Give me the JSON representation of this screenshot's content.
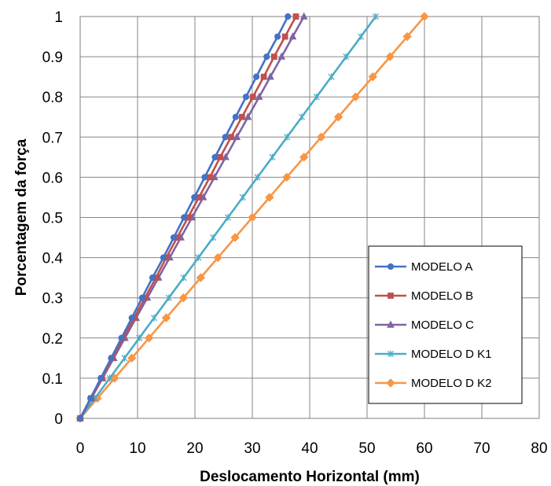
{
  "chart_data": {
    "type": "line",
    "title": "",
    "xlabel": "Deslocamento Horizontal (mm)",
    "ylabel": "Porcentagem da força",
    "xlim": [
      0,
      80
    ],
    "ylim": [
      0,
      1
    ],
    "xticks": [
      "0",
      "10",
      "20",
      "30",
      "40",
      "50",
      "60",
      "70",
      "80"
    ],
    "yticks": [
      "0",
      "0.1",
      "0.2",
      "0.3",
      "0.4",
      "0.5",
      "0.6",
      "0.7",
      "0.8",
      "0.9",
      "1"
    ],
    "grid": true,
    "legend_position": "lower-right",
    "y": [
      0,
      0.05,
      0.1,
      0.15,
      0.2,
      0.25,
      0.3,
      0.35,
      0.4,
      0.45,
      0.5,
      0.55,
      0.6,
      0.65,
      0.7,
      0.75,
      0.8,
      0.85,
      0.9,
      0.95,
      1
    ],
    "series": [
      {
        "name": "MODELO A",
        "color": "#4472C4",
        "marker": "circle",
        "x": [
          0,
          1.8,
          3.6,
          5.4,
          7.2,
          9.0,
          10.8,
          12.6,
          14.5,
          16.3,
          18.1,
          19.9,
          21.7,
          23.5,
          25.3,
          27.1,
          28.9,
          30.7,
          32.5,
          34.4,
          36.2
        ]
      },
      {
        "name": "MODELO B",
        "color": "#C0504D",
        "marker": "square",
        "x": [
          0,
          1.9,
          3.8,
          5.6,
          7.5,
          9.4,
          11.3,
          13.2,
          15.0,
          16.9,
          18.8,
          20.7,
          22.6,
          24.4,
          26.3,
          28.2,
          30.1,
          32.0,
          33.8,
          35.7,
          37.6
        ]
      },
      {
        "name": "MODELO C",
        "color": "#8064A2",
        "marker": "triangle",
        "x": [
          0,
          1.95,
          3.9,
          5.85,
          7.8,
          9.75,
          11.7,
          13.65,
          15.6,
          17.55,
          19.5,
          21.45,
          23.4,
          25.35,
          27.3,
          29.25,
          31.2,
          33.15,
          35.1,
          37.05,
          39.0
        ]
      },
      {
        "name": "MODELO D K1",
        "color": "#4BACC6",
        "marker": "star",
        "x": [
          0,
          2.58,
          5.15,
          7.73,
          10.3,
          12.88,
          15.45,
          18.03,
          20.6,
          23.18,
          25.75,
          28.33,
          30.9,
          33.48,
          36.05,
          38.63,
          41.2,
          43.78,
          46.35,
          48.93,
          51.5
        ]
      },
      {
        "name": "MODELO D K2",
        "color": "#F79646",
        "marker": "diamond",
        "x": [
          0,
          3.0,
          6.0,
          9.0,
          12.0,
          15.0,
          18.0,
          21.0,
          24.0,
          27.0,
          30.0,
          33.0,
          36.0,
          39.0,
          42.0,
          45.0,
          48.0,
          51.0,
          54.0,
          57.0,
          60.0
        ]
      }
    ]
  }
}
